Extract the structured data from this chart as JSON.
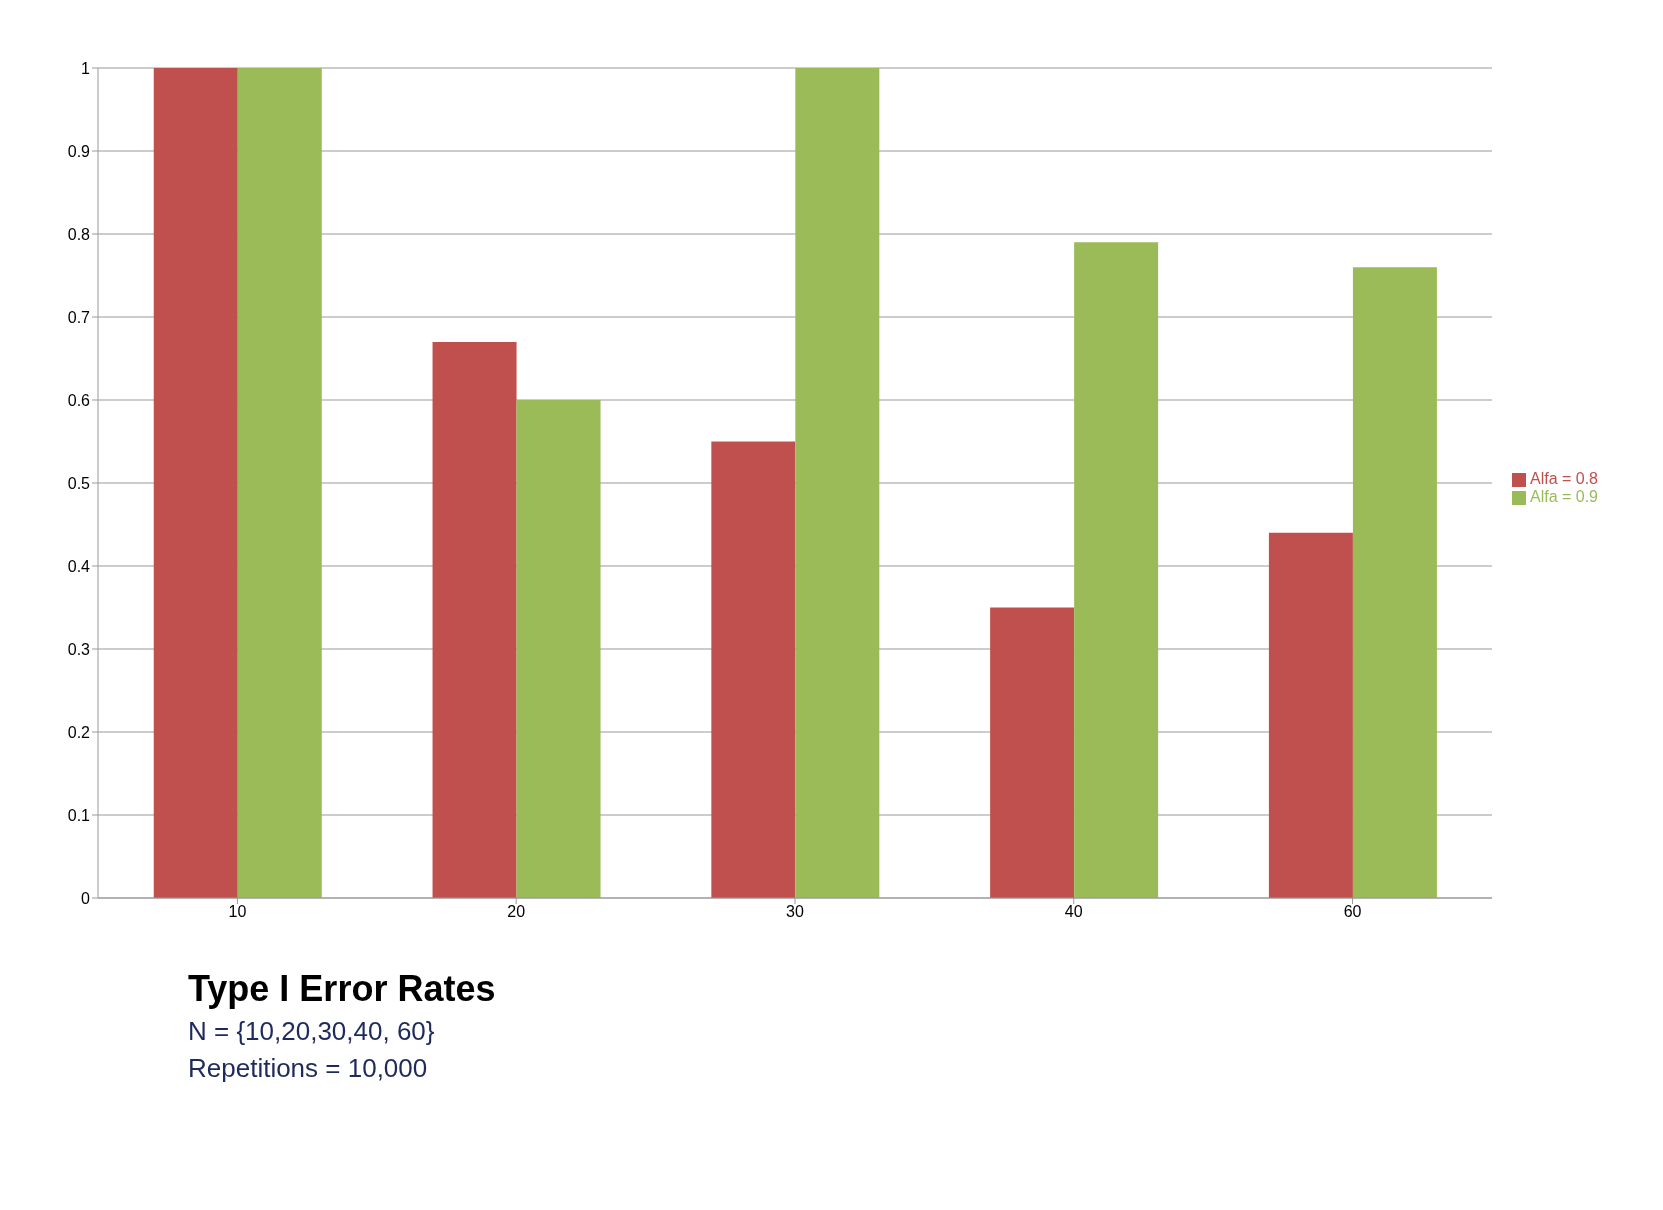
{
  "chart_data": {
    "type": "bar",
    "title": "Type I Error Rates",
    "subtitle": "N = {10,20,30,40, 60}",
    "annotations": [
      "Repetitions = 10,000"
    ],
    "categories": [
      "10",
      "20",
      "30",
      "40",
      "60"
    ],
    "series": [
      {
        "name": "Alfa = 0.8",
        "color": "#c0504d",
        "values": [
          1.0,
          0.67,
          0.55,
          0.35,
          0.44
        ]
      },
      {
        "name": "Alfa = 0.9",
        "color": "#9bbb59",
        "values": [
          1.0,
          0.6,
          1.0,
          0.79,
          0.76
        ]
      }
    ],
    "ylim": [
      0,
      1
    ],
    "yticks": [
      0,
      0.1,
      0.2,
      0.3,
      0.4,
      0.5,
      0.6,
      0.7,
      0.8,
      0.9,
      1
    ],
    "grid": "y",
    "legend": "right"
  }
}
